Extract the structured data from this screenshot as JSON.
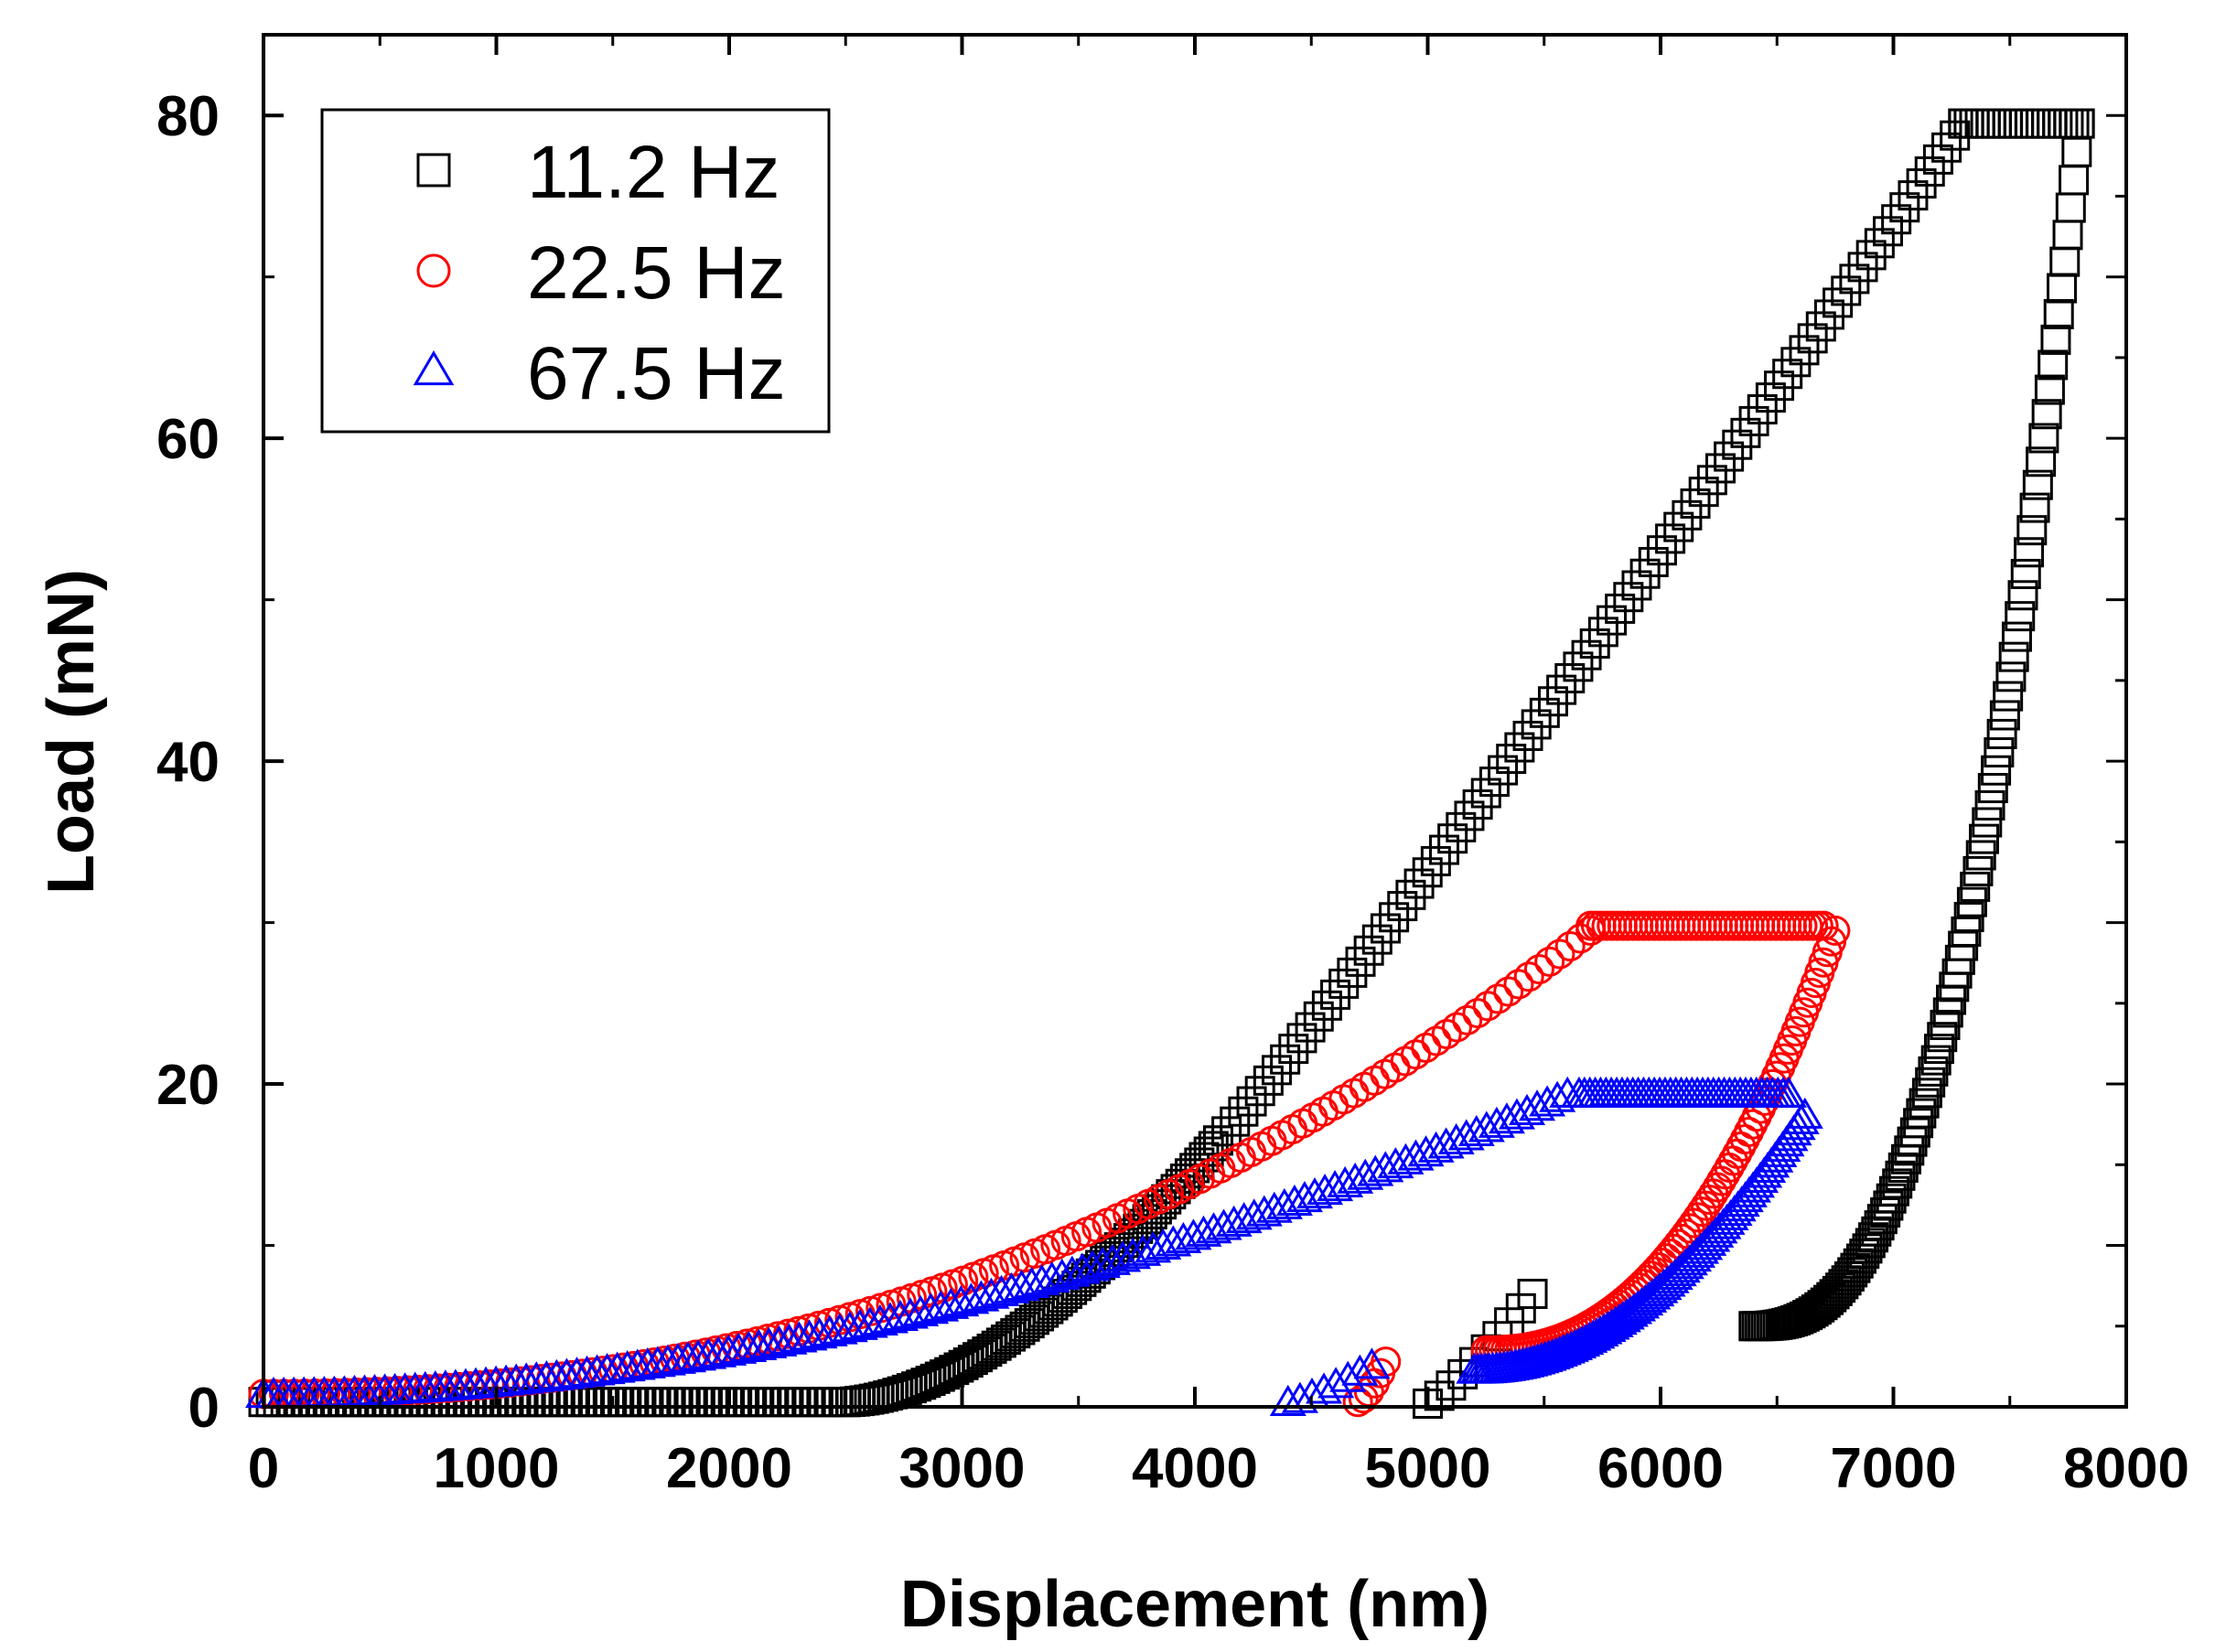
{
  "chart_data": {
    "type": "scatter",
    "title": "",
    "xlabel": "Displacement (nm)",
    "ylabel": "Load (mN)",
    "xlim": [
      0,
      8000
    ],
    "ylim": [
      0,
      85
    ],
    "xticks": [
      0,
      1000,
      2000,
      3000,
      4000,
      5000,
      6000,
      7000,
      8000
    ],
    "yticks": [
      0,
      20,
      40,
      60,
      80
    ],
    "grid": false,
    "legend_position": "top-left",
    "series": [
      {
        "name": "11.2 Hz",
        "marker": "square",
        "color": "#000000",
        "segments": [
          {
            "x_start": 0,
            "x_end": 2500,
            "count": 80,
            "y_const": 0.3
          },
          {
            "from": [
              2500,
              0.3
            ],
            "to": [
              4100,
              16.5
            ],
            "count": 80,
            "curve": 1.7
          },
          {
            "from": [
              4100,
              16.5
            ],
            "to": [
              7300,
              79.5
            ],
            "count": 90,
            "curve": 1.05
          },
          {
            "from": [
              7300,
              79.5
            ],
            "to": [
              7800,
              79.5
            ],
            "count": 22
          },
          {
            "from": [
              7800,
              79.5
            ],
            "to": [
              6400,
              5.0
            ],
            "count": 110,
            "curve": 2.6,
            "reverse": true
          },
          {
            "from": [
              5000,
              0.2
            ],
            "to": [
              5450,
              7.0
            ],
            "count": 10,
            "curve": 1.2
          }
        ]
      },
      {
        "name": "22.5 Hz",
        "marker": "circle",
        "color": "#ff0000",
        "segments": [
          {
            "from": [
              0,
              0.8
            ],
            "to": [
              5700,
              29.5
            ],
            "count": 130,
            "curve": 2.2
          },
          {
            "from": [
              5700,
              29.8
            ],
            "to": [
              6700,
              29.8
            ],
            "count": 45
          },
          {
            "from": [
              6750,
              29.5
            ],
            "to": [
              5250,
              3.5
            ],
            "count": 90,
            "curve": 2.3,
            "reverse": true
          },
          {
            "from": [
              4700,
              0.3
            ],
            "to": [
              4820,
              2.8
            ],
            "count": 6,
            "curve": 1.5
          }
        ]
      },
      {
        "name": "67.5 Hz",
        "marker": "triangle",
        "color": "#0000ff",
        "segments": [
          {
            "from": [
              0,
              0.7
            ],
            "to": [
              5600,
              19.3
            ],
            "count": 130,
            "curve": 1.9
          },
          {
            "from": [
              5650,
              19.3
            ],
            "to": [
              6550,
              19.3
            ],
            "count": 40
          },
          {
            "from": [
              6620,
              18.0
            ],
            "to": [
              5200,
              2.2
            ],
            "count": 90,
            "curve": 2.0,
            "reverse": true
          },
          {
            "from": [
              4400,
              0.2
            ],
            "to": [
              4760,
              2.5
            ],
            "count": 8,
            "curve": 1.3
          }
        ]
      }
    ]
  }
}
